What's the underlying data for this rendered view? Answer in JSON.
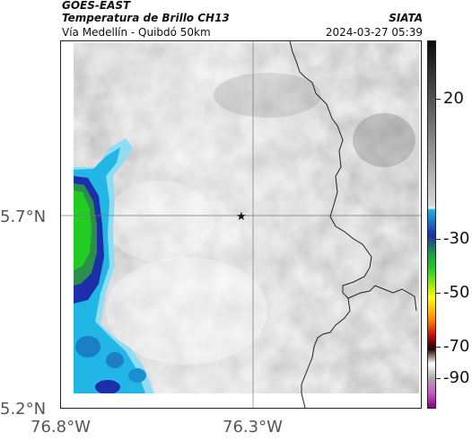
{
  "header": {
    "satellite": "GOES-EAST",
    "product": "Temperatura de Brillo CH13",
    "route": "Vía Medellín - Quibdó 50km",
    "brand": "SIATA",
    "datetime": "2024-03-27 05:39"
  },
  "axes": {
    "y_ticks": [
      "5.7°N",
      "5.2°N"
    ],
    "x_ticks": [
      "76.8°W",
      "76.3°W"
    ]
  },
  "colorbar": {
    "ticks": [
      "20",
      "-30",
      "-50",
      "-70",
      "-90"
    ]
  },
  "colors": {
    "cloud_top_green": "#22cc22",
    "cloud_blue": "#1d2fa8",
    "cloud_cyan": "#22b6e6",
    "cloud_light_cyan": "#8fdcf5"
  },
  "marker": {
    "icon": "star-icon"
  }
}
